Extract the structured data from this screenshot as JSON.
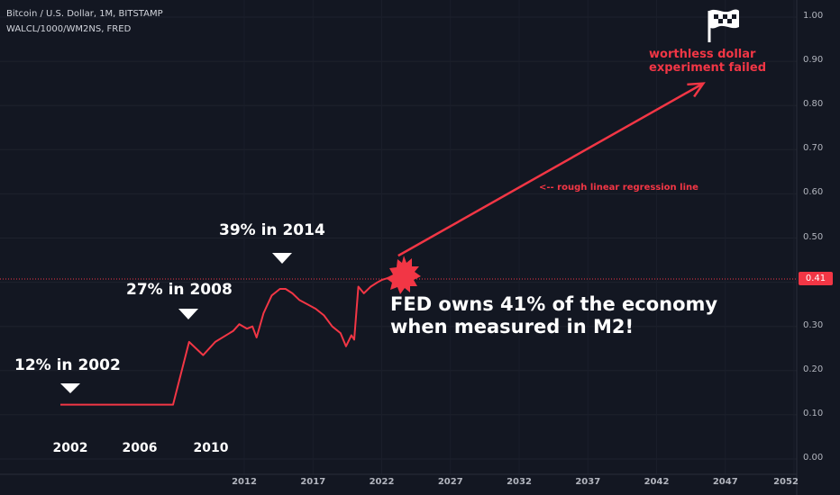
{
  "header": {
    "symbol_line": "Bitcoin / U.S. Dollar, 1M, BITSTAMP",
    "indicator_line": "WALCL/1000/WM2NS, FRED"
  },
  "annotations": {
    "a2002": "12% in 2002",
    "a2008": "27% in 2008",
    "a2014": "39% in 2014",
    "fed_line1": "FED owns 41% of the economy",
    "fed_line2": "when measured in M2!",
    "regression": "<-- rough linear regression line",
    "worthless1": "worthless dollar",
    "worthless2": "experiment failed"
  },
  "price_label": "0.41",
  "colors": {
    "accent": "#f23645",
    "background": "#131722",
    "grid": "#1f2230",
    "text": "#b2b5be"
  },
  "chart_data": {
    "type": "line",
    "title": "WALCL/1000/WM2NS, FRED",
    "ylim": [
      0,
      1.0
    ],
    "y_ticks": [
      "1.00",
      "0.90",
      "0.80",
      "0.70",
      "0.60",
      "0.50",
      "0.40",
      "0.30",
      "0.20",
      "0.10",
      "0.00"
    ],
    "x_ticks_axis": [
      "2012",
      "2017",
      "2022",
      "2027",
      "2032",
      "2037",
      "2042",
      "2047",
      "2052"
    ],
    "x_labels_overlay": [
      "2002",
      "2006",
      "2010"
    ],
    "series": [
      {
        "x": [
          2002.0,
          2008.5,
          2009.3,
          2010.0,
          2010.6,
          2011.5,
          2011.8,
          2012.2,
          2012.6,
          2012.9,
          2013.4,
          2014.0,
          2014.6,
          2015.0,
          2015.5,
          2016.0,
          2016.6,
          2017.2,
          2017.8,
          2018.4,
          2019.0,
          2019.4,
          2019.8,
          2020.0,
          2020.3,
          2020.7,
          2021.2,
          2021.7,
          2022.0,
          2022.5
        ],
        "values": [
          0.123,
          0.123,
          0.265,
          0.235,
          0.265,
          0.29,
          0.305,
          0.295,
          0.3,
          0.275,
          0.33,
          0.37,
          0.385,
          0.385,
          0.375,
          0.36,
          0.35,
          0.34,
          0.325,
          0.3,
          0.285,
          0.255,
          0.28,
          0.27,
          0.39,
          0.375,
          0.39,
          0.4,
          0.405,
          0.41
        ]
      }
    ],
    "regression_line": {
      "x": [
        2023.2,
        2045.4
      ],
      "values": [
        0.46,
        0.85
      ]
    },
    "last_value": 0.41
  }
}
